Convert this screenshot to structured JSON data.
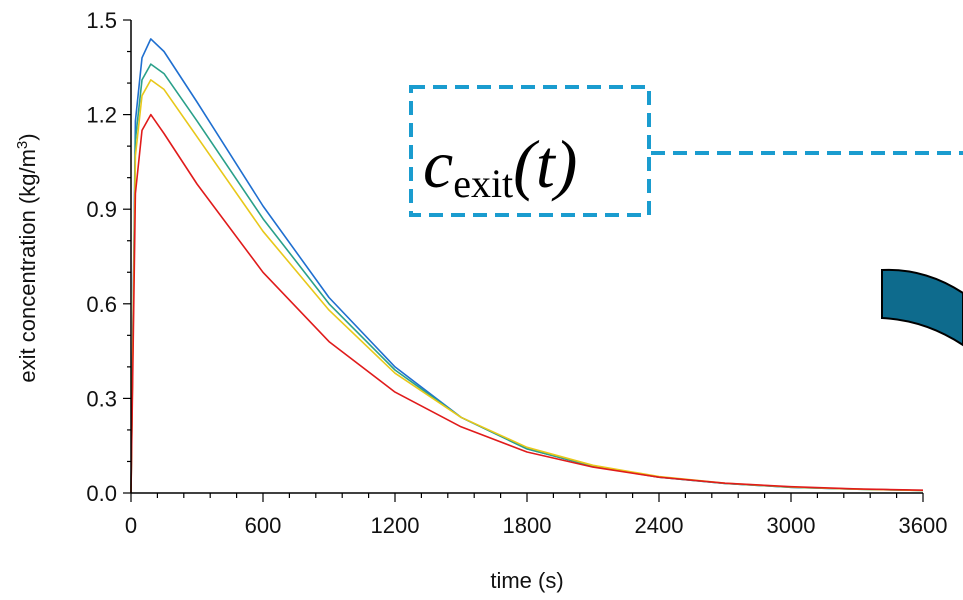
{
  "chart_data": {
    "type": "line",
    "xlabel": "time (s)",
    "ylabel_main": "exit concentration (kg/m",
    "ylabel_sup": "3",
    "ylabel_end": ")",
    "xlim": [
      0,
      3600
    ],
    "ylim": [
      0,
      1.5
    ],
    "xticks": [
      "0",
      "600",
      "1200",
      "1800",
      "2400",
      "3000",
      "3600"
    ],
    "yticks": [
      "0.0",
      "0.3",
      "0.6",
      "0.9",
      "1.2",
      "1.5"
    ],
    "grid": false,
    "series": [
      {
        "color": "#1f6fd0",
        "x": [
          0,
          20,
          50,
          90,
          150,
          300,
          600,
          900,
          1200,
          1500,
          1800,
          2100,
          2400,
          2700,
          3000,
          3300,
          3600
        ],
        "y": [
          0,
          1.18,
          1.38,
          1.44,
          1.4,
          1.24,
          0.91,
          0.62,
          0.4,
          0.24,
          0.14,
          0.085,
          0.05,
          0.03,
          0.018,
          0.012,
          0.008
        ]
      },
      {
        "color": "#2aa08a",
        "x": [
          0,
          20,
          50,
          90,
          150,
          300,
          600,
          900,
          1200,
          1500,
          1800,
          2100,
          2400,
          2700,
          3000,
          3300,
          3600
        ],
        "y": [
          0,
          1.12,
          1.31,
          1.36,
          1.33,
          1.18,
          0.87,
          0.6,
          0.39,
          0.24,
          0.14,
          0.085,
          0.05,
          0.03,
          0.018,
          0.012,
          0.008
        ]
      },
      {
        "color": "#e8c81a",
        "x": [
          0,
          20,
          50,
          90,
          150,
          300,
          600,
          900,
          1200,
          1500,
          1800,
          2100,
          2400,
          2700,
          3000,
          3300,
          3600
        ],
        "y": [
          0,
          1.07,
          1.26,
          1.31,
          1.28,
          1.13,
          0.83,
          0.58,
          0.38,
          0.24,
          0.145,
          0.088,
          0.052,
          0.031,
          0.019,
          0.012,
          0.008
        ]
      },
      {
        "color": "#e01b1b",
        "x": [
          0,
          20,
          50,
          90,
          150,
          300,
          600,
          900,
          1200,
          1500,
          1800,
          2100,
          2400,
          2700,
          3000,
          3300,
          3600
        ],
        "y": [
          0,
          0.95,
          1.15,
          1.2,
          1.14,
          0.98,
          0.7,
          0.48,
          0.32,
          0.21,
          0.13,
          0.082,
          0.05,
          0.031,
          0.02,
          0.013,
          0.009
        ]
      }
    ],
    "annotation": {
      "main": "c",
      "sub": "exit",
      "arg": "(t)"
    }
  },
  "colors": {
    "annotation_border": "#1a9ccf",
    "arc_fill": "#0e6b8d"
  }
}
